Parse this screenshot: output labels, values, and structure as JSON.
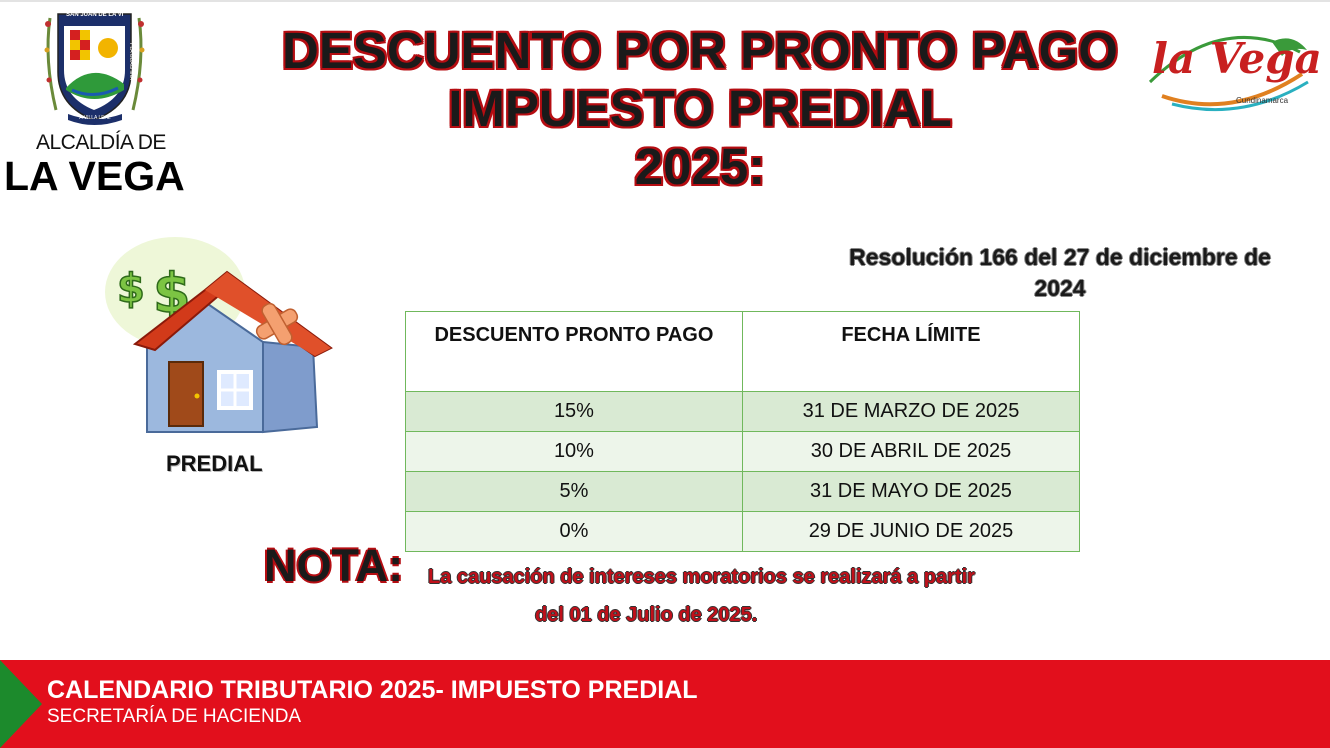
{
  "header": {
    "alcaldia_line1": "ALCALDÍA DE",
    "alcaldia_line2": "LA VEGA",
    "shield_text_top": "SAN JUAN DE LA VEGA",
    "shield_text_left": "DE CHAMBATA",
    "shield_text_right": "Y LA GUACHINA",
    "shield_text_bottom": "A VILLA LEAL",
    "title_line1": "DESCUENTO POR PRONTO PAGO",
    "title_line2": "IMPUESTO PREDIAL",
    "title_line3": "2025:",
    "brand_text": "la Vega",
    "brand_sub": "Cundinamarca"
  },
  "illustration": {
    "label": "PREDIAL"
  },
  "resolution": {
    "line1": "Resolución 166 del 27 de diciembre de",
    "line2": "2024"
  },
  "table": {
    "headers": [
      "DESCUENTO PRONTO PAGO",
      "FECHA LÍMITE"
    ],
    "rows": [
      [
        "15%",
        "31 DE MARZO DE 2025"
      ],
      [
        "10%",
        "30 DE ABRIL DE 2025"
      ],
      [
        "5%",
        "31 DE MAYO DE 2025"
      ],
      [
        "0%",
        "29 DE JUNIO DE 2025"
      ]
    ]
  },
  "note": {
    "label": "NOTA:",
    "line1": "La causación de intereses moratorios se realizará a partir",
    "line2": "del 01 de Julio de 2025."
  },
  "footer": {
    "title": "CALENDARIO TRIBUTARIO 2025- IMPUESTO PREDIAL",
    "subtitle": "SECRETARÍA DE HACIENDA"
  },
  "colors": {
    "footer_red": "#e20f1c",
    "footer_green": "#1c8a2c",
    "title_outline": "#b50d12",
    "table_border": "#70b85c",
    "row_dark": "#d9ead3",
    "row_light": "#edf5ea"
  }
}
